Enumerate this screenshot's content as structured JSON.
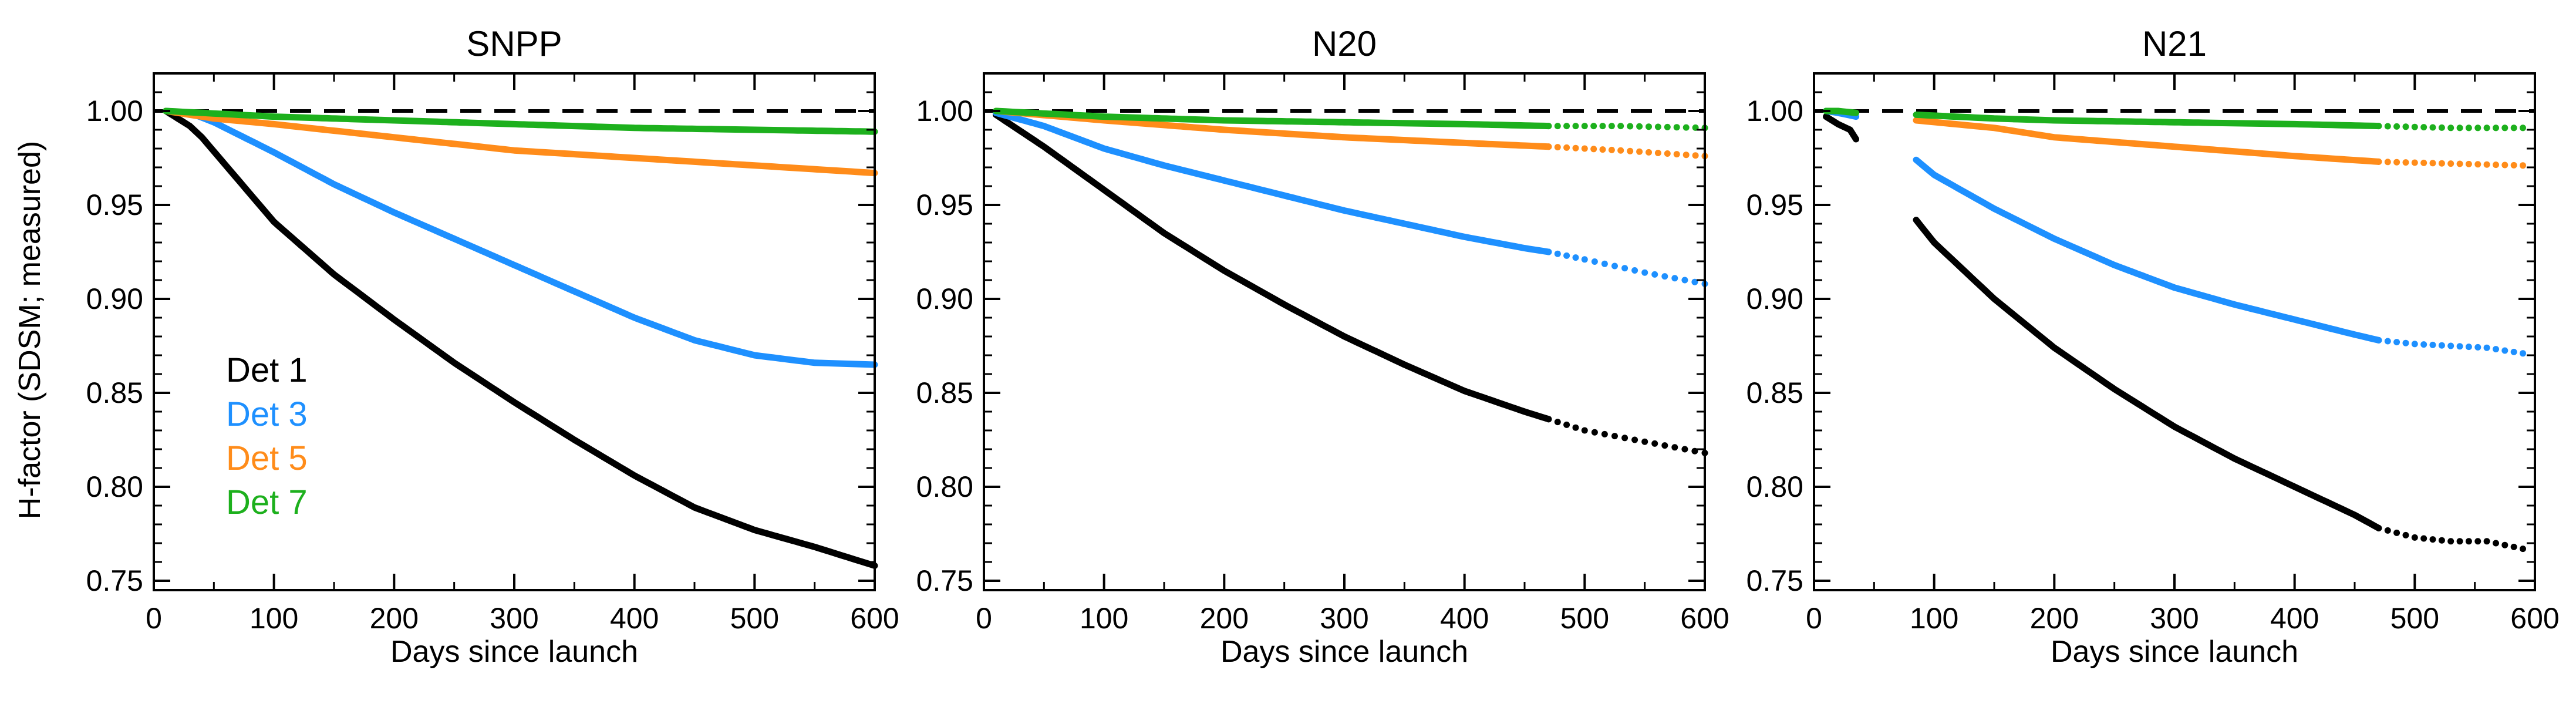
{
  "figure": {
    "ylabel": "H-factor (SDSM; measured)",
    "legend": [
      {
        "label": "Det 1",
        "color": "#000000"
      },
      {
        "label": "Det 3",
        "color": "#1e90ff"
      },
      {
        "label": "Det 5",
        "color": "#ff8c1a"
      },
      {
        "label": "Det 7",
        "color": "#1db01d"
      }
    ]
  },
  "chart_data": [
    {
      "type": "scatter",
      "title": "SNPP",
      "xlabel": "Days since launch",
      "ylabel": "H-factor (SDSM; measured)",
      "xlim": [
        0,
        600
      ],
      "ylim": [
        0.745,
        1.02
      ],
      "xticks": [
        "0",
        "100",
        "200",
        "300",
        "400",
        "500",
        "600"
      ],
      "yticks": [
        "0.75",
        "0.80",
        "0.85",
        "0.90",
        "0.95",
        "1.00"
      ],
      "reference_line": 1.0,
      "series": [
        {
          "name": "Det 1",
          "color": "#000000",
          "segments": [
            {
              "x": [
                10,
                20,
                30,
                40,
                60,
                80,
                100,
                150,
                200,
                250,
                300,
                350,
                400,
                450,
                500,
                550,
                600
              ],
              "y": [
                1.0,
                0.996,
                0.992,
                0.986,
                0.971,
                0.956,
                0.941,
                0.913,
                0.889,
                0.866,
                0.845,
                0.825,
                0.806,
                0.789,
                0.777,
                0.768,
                0.758
              ],
              "style": "dense"
            }
          ]
        },
        {
          "name": "Det 3",
          "color": "#1e90ff",
          "segments": [
            {
              "x": [
                10,
                30,
                50,
                100,
                150,
                200,
                250,
                300,
                350,
                400,
                450,
                500,
                550,
                600
              ],
              "y": [
                1.0,
                0.999,
                0.994,
                0.978,
                0.961,
                0.946,
                0.932,
                0.918,
                0.904,
                0.89,
                0.878,
                0.87,
                0.866,
                0.865
              ],
              "style": "dense"
            }
          ]
        },
        {
          "name": "Det 5",
          "color": "#ff8c1a",
          "segments": [
            {
              "x": [
                10,
                50,
                100,
                200,
                300,
                400,
                500,
                600
              ],
              "y": [
                1.0,
                0.996,
                0.993,
                0.986,
                0.979,
                0.975,
                0.971,
                0.967
              ],
              "style": "dense"
            }
          ]
        },
        {
          "name": "Det 7",
          "color": "#1db01d",
          "segments": [
            {
              "x": [
                10,
                100,
                200,
                300,
                400,
                500,
                600
              ],
              "y": [
                1.0,
                0.997,
                0.995,
                0.993,
                0.991,
                0.99,
                0.989
              ],
              "style": "dense"
            }
          ]
        }
      ]
    },
    {
      "type": "scatter",
      "title": "N20",
      "xlabel": "Days since launch",
      "ylabel": "",
      "xlim": [
        0,
        600
      ],
      "ylim": [
        0.745,
        1.02
      ],
      "xticks": [
        "0",
        "100",
        "200",
        "300",
        "400",
        "500",
        "600"
      ],
      "yticks": [
        "0.75",
        "0.80",
        "0.85",
        "0.90",
        "0.95",
        "1.00"
      ],
      "reference_line": 1.0,
      "series": [
        {
          "name": "Det 1",
          "color": "#000000",
          "segments": [
            {
              "x": [
                10,
                50,
                100,
                150,
                200,
                250,
                300,
                350,
                400,
                450,
                470
              ],
              "y": [
                0.998,
                0.981,
                0.958,
                0.935,
                0.915,
                0.897,
                0.88,
                0.865,
                0.851,
                0.84,
                0.836
              ],
              "style": "dense"
            },
            {
              "x": [
                470,
                500,
                550,
                600
              ],
              "y": [
                0.836,
                0.83,
                0.824,
                0.818
              ],
              "style": "sparse"
            }
          ]
        },
        {
          "name": "Det 3",
          "color": "#1e90ff",
          "segments": [
            {
              "x": [
                10,
                50,
                100,
                150,
                200,
                250,
                300,
                350,
                400,
                450,
                470
              ],
              "y": [
                0.999,
                0.992,
                0.98,
                0.971,
                0.963,
                0.955,
                0.947,
                0.94,
                0.933,
                0.927,
                0.925
              ],
              "style": "dense"
            },
            {
              "x": [
                470,
                500,
                550,
                600
              ],
              "y": [
                0.925,
                0.921,
                0.914,
                0.908
              ],
              "style": "sparse"
            }
          ]
        },
        {
          "name": "Det 5",
          "color": "#ff8c1a",
          "segments": [
            {
              "x": [
                10,
                100,
                200,
                300,
                400,
                470
              ],
              "y": [
                1.0,
                0.995,
                0.99,
                0.986,
                0.983,
                0.981
              ],
              "style": "dense"
            },
            {
              "x": [
                470,
                530,
                600
              ],
              "y": [
                0.981,
                0.979,
                0.976
              ],
              "style": "sparse"
            }
          ]
        },
        {
          "name": "Det 7",
          "color": "#1db01d",
          "segments": [
            {
              "x": [
                10,
                100,
                200,
                300,
                400,
                470
              ],
              "y": [
                1.0,
                0.997,
                0.995,
                0.994,
                0.993,
                0.992
              ],
              "style": "dense"
            },
            {
              "x": [
                470,
                530,
                600
              ],
              "y": [
                0.992,
                0.992,
                0.991
              ],
              "style": "sparse"
            }
          ]
        }
      ]
    },
    {
      "type": "scatter",
      "title": "N21",
      "xlabel": "Days since launch",
      "ylabel": "",
      "xlim": [
        0,
        600
      ],
      "ylim": [
        0.745,
        1.02
      ],
      "xticks": [
        "0",
        "100",
        "200",
        "300",
        "400",
        "500",
        "600"
      ],
      "yticks": [
        "0.75",
        "0.80",
        "0.85",
        "0.90",
        "0.95",
        "1.00"
      ],
      "reference_line": 1.0,
      "series": [
        {
          "name": "Det 1",
          "color": "#000000",
          "segments": [
            {
              "x": [
                10,
                20,
                30,
                35
              ],
              "y": [
                0.997,
                0.993,
                0.99,
                0.985
              ],
              "style": "dense"
            },
            {
              "x": [
                85,
                100,
                150,
                200,
                250,
                300,
                350,
                400,
                450,
                470
              ],
              "y": [
                0.942,
                0.93,
                0.9,
                0.874,
                0.852,
                0.832,
                0.815,
                0.8,
                0.785,
                0.778
              ],
              "style": "dense"
            },
            {
              "x": [
                470,
                500,
                530,
                560,
                590
              ],
              "y": [
                0.778,
                0.773,
                0.771,
                0.771,
                0.767
              ],
              "style": "sparse"
            }
          ]
        },
        {
          "name": "Det 3",
          "color": "#1e90ff",
          "segments": [
            {
              "x": [
                10,
                20,
                35
              ],
              "y": [
                1.0,
                0.999,
                0.997
              ],
              "style": "dense"
            },
            {
              "x": [
                85,
                100,
                150,
                200,
                250,
                300,
                350,
                400,
                450,
                470
              ],
              "y": [
                0.974,
                0.966,
                0.948,
                0.932,
                0.918,
                0.906,
                0.897,
                0.889,
                0.881,
                0.878
              ],
              "style": "dense"
            },
            {
              "x": [
                470,
                500,
                530,
                560,
                590
              ],
              "y": [
                0.878,
                0.876,
                0.875,
                0.874,
                0.871
              ],
              "style": "sparse"
            }
          ]
        },
        {
          "name": "Det 5",
          "color": "#ff8c1a",
          "segments": [
            {
              "x": [
                85,
                150,
                200,
                300,
                400,
                470
              ],
              "y": [
                0.995,
                0.991,
                0.986,
                0.981,
                0.976,
                0.973
              ],
              "style": "dense"
            },
            {
              "x": [
                470,
                530,
                590
              ],
              "y": [
                0.973,
                0.972,
                0.971
              ],
              "style": "sparse"
            }
          ]
        },
        {
          "name": "Det 7",
          "color": "#1db01d",
          "segments": [
            {
              "x": [
                10,
                20,
                35
              ],
              "y": [
                1.0,
                1.0,
                0.999
              ],
              "style": "dense"
            },
            {
              "x": [
                85,
                150,
                200,
                300,
                400,
                470
              ],
              "y": [
                0.998,
                0.996,
                0.995,
                0.994,
                0.993,
                0.992
              ],
              "style": "dense"
            },
            {
              "x": [
                470,
                530,
                590
              ],
              "y": [
                0.992,
                0.991,
                0.991
              ],
              "style": "sparse"
            }
          ]
        }
      ]
    }
  ]
}
